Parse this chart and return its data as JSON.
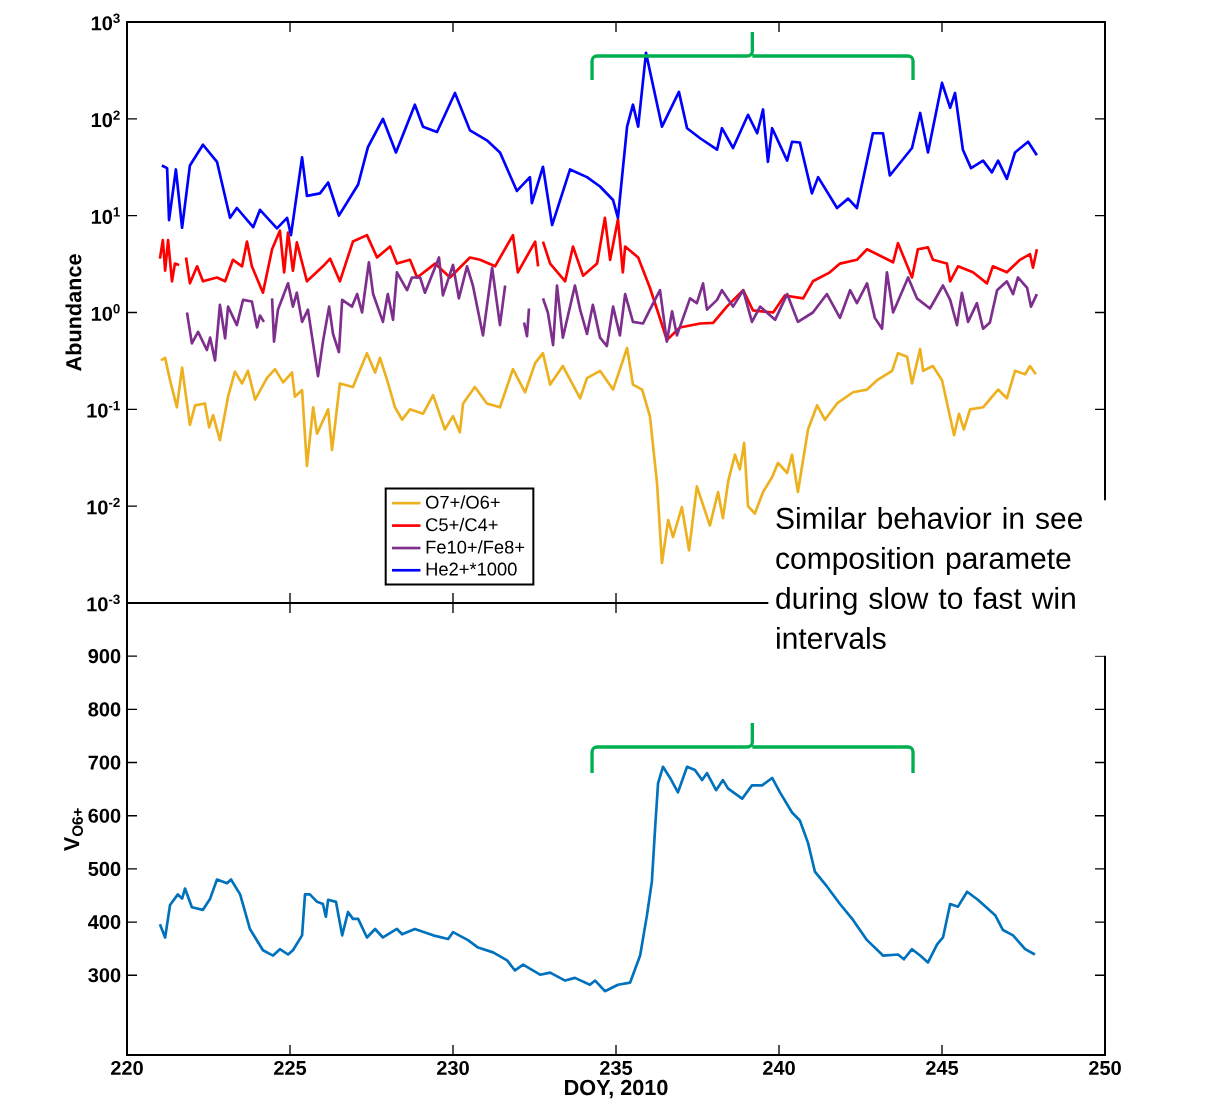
{
  "chart_data": [
    {
      "type": "line",
      "ylabel": "Abundance",
      "log": "y",
      "xlim": [
        220,
        250
      ],
      "xticks": [
        220,
        225,
        230,
        235,
        240,
        245,
        250
      ],
      "ylim": [
        0.001,
        1000
      ],
      "yticks": [
        {
          "value": 0.001,
          "label": "10$^{-3}$"
        },
        {
          "value": 0.01,
          "label": "10$^{-2}$"
        },
        {
          "value": 0.1,
          "label": "10$^{-1}$"
        },
        {
          "value": 1,
          "label": "10$^{0}$"
        },
        {
          "value": 10,
          "label": "10$^{1}$"
        },
        {
          "value": 100,
          "label": "10$^{2}$"
        },
        {
          "value": 1000,
          "label": "10$^{3}$"
        }
      ],
      "tick_labels": "y",
      "legend": "bottom",
      "annotations": [
        "Similar behavior in see composition paramete during slow to fast win intervals"
      ],
      "series": [
        {
          "name": "O7+/O6+",
          "color": "#edb120",
          "x": [
            221.04,
            221.17,
            221.32,
            221.53,
            221.69,
            221.93,
            222.09,
            222.39,
            222.52,
            222.64,
            222.85,
            223.1,
            223.31,
            223.53,
            223.71,
            223.93,
            224.29,
            224.54,
            224.79,
            225.06,
            225.15,
            225.37,
            225.52,
            225.71,
            225.83,
            226.17,
            226.29,
            226.53,
            226.93,
            227.36,
            227.61,
            227.76,
            227.98,
            228.22,
            228.44,
            228.68,
            229.08,
            229.39,
            229.75,
            230.0,
            230.21,
            230.31,
            230.67,
            231.04,
            231.44,
            231.84,
            232.21,
            232.52,
            232.76,
            232.98,
            233.37,
            233.9,
            234.11,
            234.51,
            234.91,
            235.34,
            235.52,
            235.8,
            236.04,
            236.26,
            236.41,
            236.6,
            236.75,
            237.02,
            237.24,
            237.48,
            237.88,
            238.13,
            238.28,
            238.44,
            238.65,
            238.8,
            238.93,
            239.05,
            239.26,
            239.51,
            239.79,
            239.97,
            240.25,
            240.4,
            240.58,
            240.89,
            241.17,
            241.41,
            241.78,
            242.27,
            242.7,
            243.01,
            243.47,
            243.65,
            243.93,
            244.08,
            244.33,
            244.42,
            244.72,
            245.0,
            245.37,
            245.52,
            245.67,
            245.86,
            246.26,
            246.72,
            246.99,
            247.24,
            247.55,
            247.7,
            247.88
          ],
          "values": [
            0.32,
            0.34,
            0.2,
            0.105,
            0.27,
            0.069,
            0.11,
            0.115,
            0.065,
            0.087,
            0.048,
            0.135,
            0.245,
            0.185,
            0.25,
            0.126,
            0.21,
            0.26,
            0.19,
            0.24,
            0.135,
            0.158,
            0.026,
            0.105,
            0.056,
            0.1,
            0.038,
            0.185,
            0.17,
            0.38,
            0.24,
            0.34,
            0.2,
            0.105,
            0.078,
            0.1,
            0.09,
            0.14,
            0.062,
            0.085,
            0.058,
            0.115,
            0.17,
            0.115,
            0.105,
            0.26,
            0.15,
            0.3,
            0.38,
            0.18,
            0.28,
            0.13,
            0.21,
            0.25,
            0.16,
            0.43,
            0.18,
            0.16,
            0.085,
            0.017,
            0.0026,
            0.0072,
            0.0048,
            0.0098,
            0.0035,
            0.016,
            0.0063,
            0.014,
            0.0075,
            0.018,
            0.034,
            0.024,
            0.045,
            0.01,
            0.0084,
            0.014,
            0.02,
            0.028,
            0.022,
            0.034,
            0.014,
            0.062,
            0.11,
            0.078,
            0.115,
            0.15,
            0.16,
            0.2,
            0.25,
            0.38,
            0.35,
            0.185,
            0.42,
            0.25,
            0.28,
            0.2,
            0.054,
            0.09,
            0.062,
            0.1,
            0.105,
            0.16,
            0.13,
            0.25,
            0.23,
            0.28,
            0.23
          ]
        },
        {
          "name": "C5+/C4+",
          "color": "#ff0000",
          "x": [
            221.01,
            221.1,
            221.17,
            221.26,
            221.38,
            221.47,
            221.6,
            221.7,
            221.81,
            221.93,
            222.15,
            222.33,
            222.76,
            223.01,
            223.25,
            223.53,
            223.68,
            223.83,
            224.17,
            224.45,
            224.69,
            224.82,
            224.94,
            225.09,
            225.21,
            225.52,
            226.01,
            226.23,
            226.53,
            226.93,
            227.36,
            227.67,
            228.07,
            228.28,
            228.68,
            228.9,
            229.45,
            229.91,
            230.52,
            230.83,
            231.29,
            231.84,
            231.99,
            232.52,
            232.61,
            232.68,
            232.76,
            232.98,
            233.44,
            233.68,
            233.99,
            234.42,
            234.66,
            234.82,
            235.06,
            235.21,
            235.28,
            235.68,
            236.04,
            236.29,
            236.56,
            236.96,
            237.58,
            237.98,
            238.4,
            238.9,
            239.2,
            239.82,
            240.18,
            240.74,
            241.04,
            241.56,
            241.87,
            242.39,
            242.7,
            243.01,
            243.5,
            243.65,
            244.08,
            244.26,
            244.57,
            244.72,
            245.15,
            245.25,
            245.49,
            245.95,
            246.38,
            246.56,
            246.99,
            247.39,
            247.7,
            247.79,
            247.91
          ],
          "values": [
            3.6,
            5.6,
            2.7,
            5.6,
            2.1,
            3.2,
            3.1,
            null,
            3.7,
            2.0,
            3.0,
            2.1,
            2.3,
            2.1,
            3.5,
            3.0,
            5.4,
            3.0,
            1.6,
            4.5,
            7,
            2.6,
            6.7,
            2.7,
            5.3,
            2.1,
            3.0,
            3.6,
            2.1,
            5.4,
            6.3,
            3.7,
            4.8,
            3.2,
            3.5,
            2.3,
            3.2,
            2.3,
            3.7,
            3.5,
            3.0,
            6.3,
            2.6,
            5.4,
            3.0,
            null,
            5.4,
            3.2,
            2.1,
            4.8,
            2.4,
            3.2,
            9.5,
            3.5,
            9.2,
            2.6,
            4.8,
            3.7,
            1.8,
            1.0,
            0.52,
            0.7,
            0.77,
            0.78,
            1.15,
            1.7,
            1.05,
            1.0,
            1.5,
            1.4,
            2.1,
            2.6,
            3.2,
            3.5,
            4.5,
            4.0,
            3.3,
            5.2,
            2.3,
            4.5,
            4.7,
            3.5,
            3.2,
            2.1,
            3.0,
            2.6,
            2.0,
            3.0,
            2.6,
            3.5,
            4.0,
            2.9,
            4.5
          ]
        },
        {
          "name": "Fe10+/Fe8+",
          "color": "#7e2f8e",
          "x": [
            221.84,
            221.99,
            222.18,
            222.45,
            222.55,
            222.7,
            222.85,
            223.01,
            223.1,
            223.37,
            223.56,
            223.83,
            223.99,
            224.08,
            224.2,
            224.3,
            224.45,
            224.51,
            224.63,
            224.94,
            225.09,
            225.21,
            225.37,
            225.55,
            225.86,
            226.01,
            226.2,
            226.32,
            226.5,
            226.6,
            226.9,
            227.06,
            227.21,
            227.42,
            227.55,
            227.85,
            228.0,
            228.16,
            228.28,
            228.59,
            228.74,
            228.99,
            229.14,
            229.57,
            229.69,
            230.0,
            230.18,
            230.43,
            230.61,
            230.92,
            231.2,
            231.44,
            231.6,
            231.9,
            232.18,
            232.27,
            232.33,
            232.5,
            232.76,
            232.91,
            233.07,
            233.19,
            233.37,
            233.74,
            233.9,
            234.11,
            234.29,
            234.51,
            234.72,
            234.91,
            235.12,
            235.28,
            235.52,
            235.83,
            236.04,
            236.35,
            236.56,
            236.72,
            236.87,
            237.27,
            237.48,
            237.67,
            237.79,
            238.1,
            238.25,
            238.59,
            238.9,
            239.17,
            239.42,
            239.88,
            240.25,
            240.58,
            241.04,
            241.47,
            241.87,
            242.18,
            242.39,
            242.7,
            242.94,
            243.16,
            243.31,
            243.5,
            243.96,
            244.23,
            244.63,
            245.03,
            245.25,
            245.46,
            245.61,
            245.8,
            246.07,
            246.26,
            246.47,
            246.69,
            246.99,
            247.18,
            247.33,
            247.61,
            247.73,
            247.91
          ],
          "values": [
            1.0,
            0.48,
            0.63,
            0.41,
            0.55,
            0.32,
            1.2,
            0.54,
            1.15,
            0.74,
            1.35,
            1.3,
            0.7,
            0.93,
            0.8,
            null,
            1.4,
            0.5,
            1.07,
            2.0,
            1.15,
            1.6,
            0.8,
            1.07,
            0.22,
            0.5,
            1.15,
            0.6,
            0.39,
            1.35,
            1.15,
            1.55,
            1.0,
            3.3,
            1.55,
            0.8,
            1.55,
            0.84,
            2.6,
            1.7,
            2.3,
            2.3,
            1.6,
            3.7,
            1.5,
            3.1,
            1.4,
            3.0,
            1.9,
            0.58,
            2.9,
            0.74,
            1.9,
            null,
            0.79,
            0.57,
            1.1,
            null,
            1.4,
            1.0,
            0.46,
            1.9,
            0.55,
            1.9,
            1.07,
            0.6,
            1.2,
            0.55,
            0.45,
            1.15,
            0.58,
            1.55,
            0.8,
            0.77,
            1.07,
            1.7,
            0.5,
            1.03,
            0.58,
            1.4,
            1.25,
            2.0,
            1.07,
            1.35,
            1.7,
            1.15,
            1.7,
            0.8,
            1.15,
            0.84,
            1.55,
            0.8,
            1.0,
            1.55,
            0.88,
            1.7,
            1.25,
            2.0,
            0.88,
            0.68,
            2.6,
            1.0,
            2.3,
            1.4,
            1.1,
            1.9,
            1.35,
            0.74,
            1.6,
            0.8,
            1.25,
            0.68,
            0.79,
            1.7,
            2.1,
            1.55,
            2.3,
            1.8,
            1.15,
            1.55
          ]
        },
        {
          "name": "He2+*1000",
          "color": "#0000ff",
          "x": [
            221.07,
            221.23,
            221.29,
            221.5,
            221.69,
            221.93,
            222.33,
            222.76,
            223.16,
            223.37,
            223.87,
            224.08,
            224.6,
            224.91,
            225.03,
            225.37,
            225.52,
            225.92,
            226.17,
            226.5,
            227.09,
            227.39,
            227.85,
            228.25,
            228.83,
            229.08,
            229.51,
            230.06,
            230.52,
            231.04,
            231.44,
            231.96,
            232.36,
            232.42,
            232.76,
            233.04,
            233.59,
            234.11,
            234.51,
            234.91,
            235.06,
            235.34,
            235.52,
            235.68,
            235.92,
            236.41,
            236.93,
            237.18,
            237.58,
            238.1,
            238.25,
            238.59,
            239.05,
            239.33,
            239.51,
            239.66,
            239.79,
            240.25,
            240.4,
            240.64,
            241.01,
            241.2,
            241.78,
            242.12,
            242.39,
            242.88,
            243.19,
            243.4,
            244.08,
            244.33,
            244.57,
            245.0,
            245.25,
            245.4,
            245.64,
            245.89,
            246.26,
            246.53,
            246.72,
            246.99,
            247.24,
            247.64,
            247.91
          ],
          "values": [
            33,
            31,
            9,
            30,
            7.5,
            33,
            54,
            36,
            9.5,
            12,
            7.6,
            11.5,
            7.4,
            9.5,
            6.3,
            40,
            16,
            17,
            22,
            10,
            21,
            51,
            100,
            45,
            140,
            83,
            73,
            185,
            76,
            60,
            45,
            18,
            25,
            13.5,
            32,
            8,
            30,
            25,
            20,
            14.5,
            9.5,
            83,
            140,
            83,
            480,
            83,
            190,
            80,
            63,
            48,
            80,
            50,
            110,
            71,
            125,
            36,
            80,
            37,
            58,
            57,
            17,
            25,
            12,
            15,
            12,
            71,
            71,
            26,
            50,
            115,
            45,
            235,
            130,
            185,
            48,
            31,
            37,
            28,
            37,
            24,
            45,
            58,
            42
          ]
        }
      ]
    },
    {
      "type": "line",
      "xlabel": "DOY, 2010",
      "ylabel": "V$_{O6+}$",
      "xlim": [
        220,
        250
      ],
      "xticks": [
        220,
        225,
        230,
        235,
        240,
        245,
        250
      ],
      "ylim": [
        150,
        1000
      ],
      "yticks": [
        300,
        400,
        500,
        600,
        700,
        800,
        900
      ],
      "series": [
        {
          "color": "#0072bd",
          "x": [
            221.01,
            221.17,
            221.32,
            221.56,
            221.69,
            221.78,
            221.99,
            222.33,
            222.55,
            222.76,
            223.07,
            223.19,
            223.47,
            223.77,
            224.17,
            224.48,
            224.69,
            224.94,
            225.09,
            225.37,
            225.46,
            225.61,
            225.83,
            226.01,
            226.1,
            226.17,
            226.41,
            226.6,
            226.78,
            226.93,
            227.09,
            227.36,
            227.61,
            227.85,
            228.28,
            228.44,
            228.83,
            229.39,
            229.85,
            230.0,
            230.46,
            230.77,
            231.23,
            231.66,
            231.9,
            232.15,
            232.67,
            232.98,
            233.44,
            233.74,
            234.2,
            234.36,
            234.66,
            235.06,
            235.43,
            235.74,
            235.95,
            236.1,
            236.2,
            236.29,
            236.44,
            236.66,
            236.9,
            237.18,
            237.42,
            237.64,
            237.79,
            238.07,
            238.28,
            238.44,
            238.87,
            239.17,
            239.48,
            239.79,
            240.03,
            240.4,
            240.64,
            240.89,
            241.1,
            241.47,
            241.87,
            242.27,
            242.7,
            243.19,
            243.65,
            243.83,
            244.08,
            244.33,
            244.57,
            244.85,
            245.03,
            245.25,
            245.49,
            245.77,
            246.1,
            246.63,
            246.87,
            247.18,
            247.55,
            247.85
          ],
          "values": [
            396,
            371,
            432,
            452,
            444,
            463,
            428,
            423,
            444,
            480,
            473,
            480,
            452,
            387,
            347,
            337,
            349,
            339,
            347,
            375,
            452,
            452,
            438,
            434,
            410,
            442,
            438,
            375,
            419,
            406,
            406,
            371,
            387,
            371,
            387,
            377,
            387,
            375,
            368,
            381,
            366,
            352,
            343,
            328,
            309,
            320,
            301,
            305,
            290,
            295,
            282,
            290,
            270,
            282,
            286,
            337,
            413,
            476,
            577,
            661,
            692,
            671,
            644,
            692,
            686,
            667,
            680,
            648,
            667,
            651,
            632,
            657,
            657,
            671,
            644,
            606,
            591,
            549,
            495,
            467,
            434,
            404,
            366,
            337,
            339,
            330,
            349,
            337,
            324,
            358,
            371,
            434,
            429,
            457,
            442,
            413,
            385,
            375,
            349,
            339
          ]
        }
      ]
    }
  ]
}
